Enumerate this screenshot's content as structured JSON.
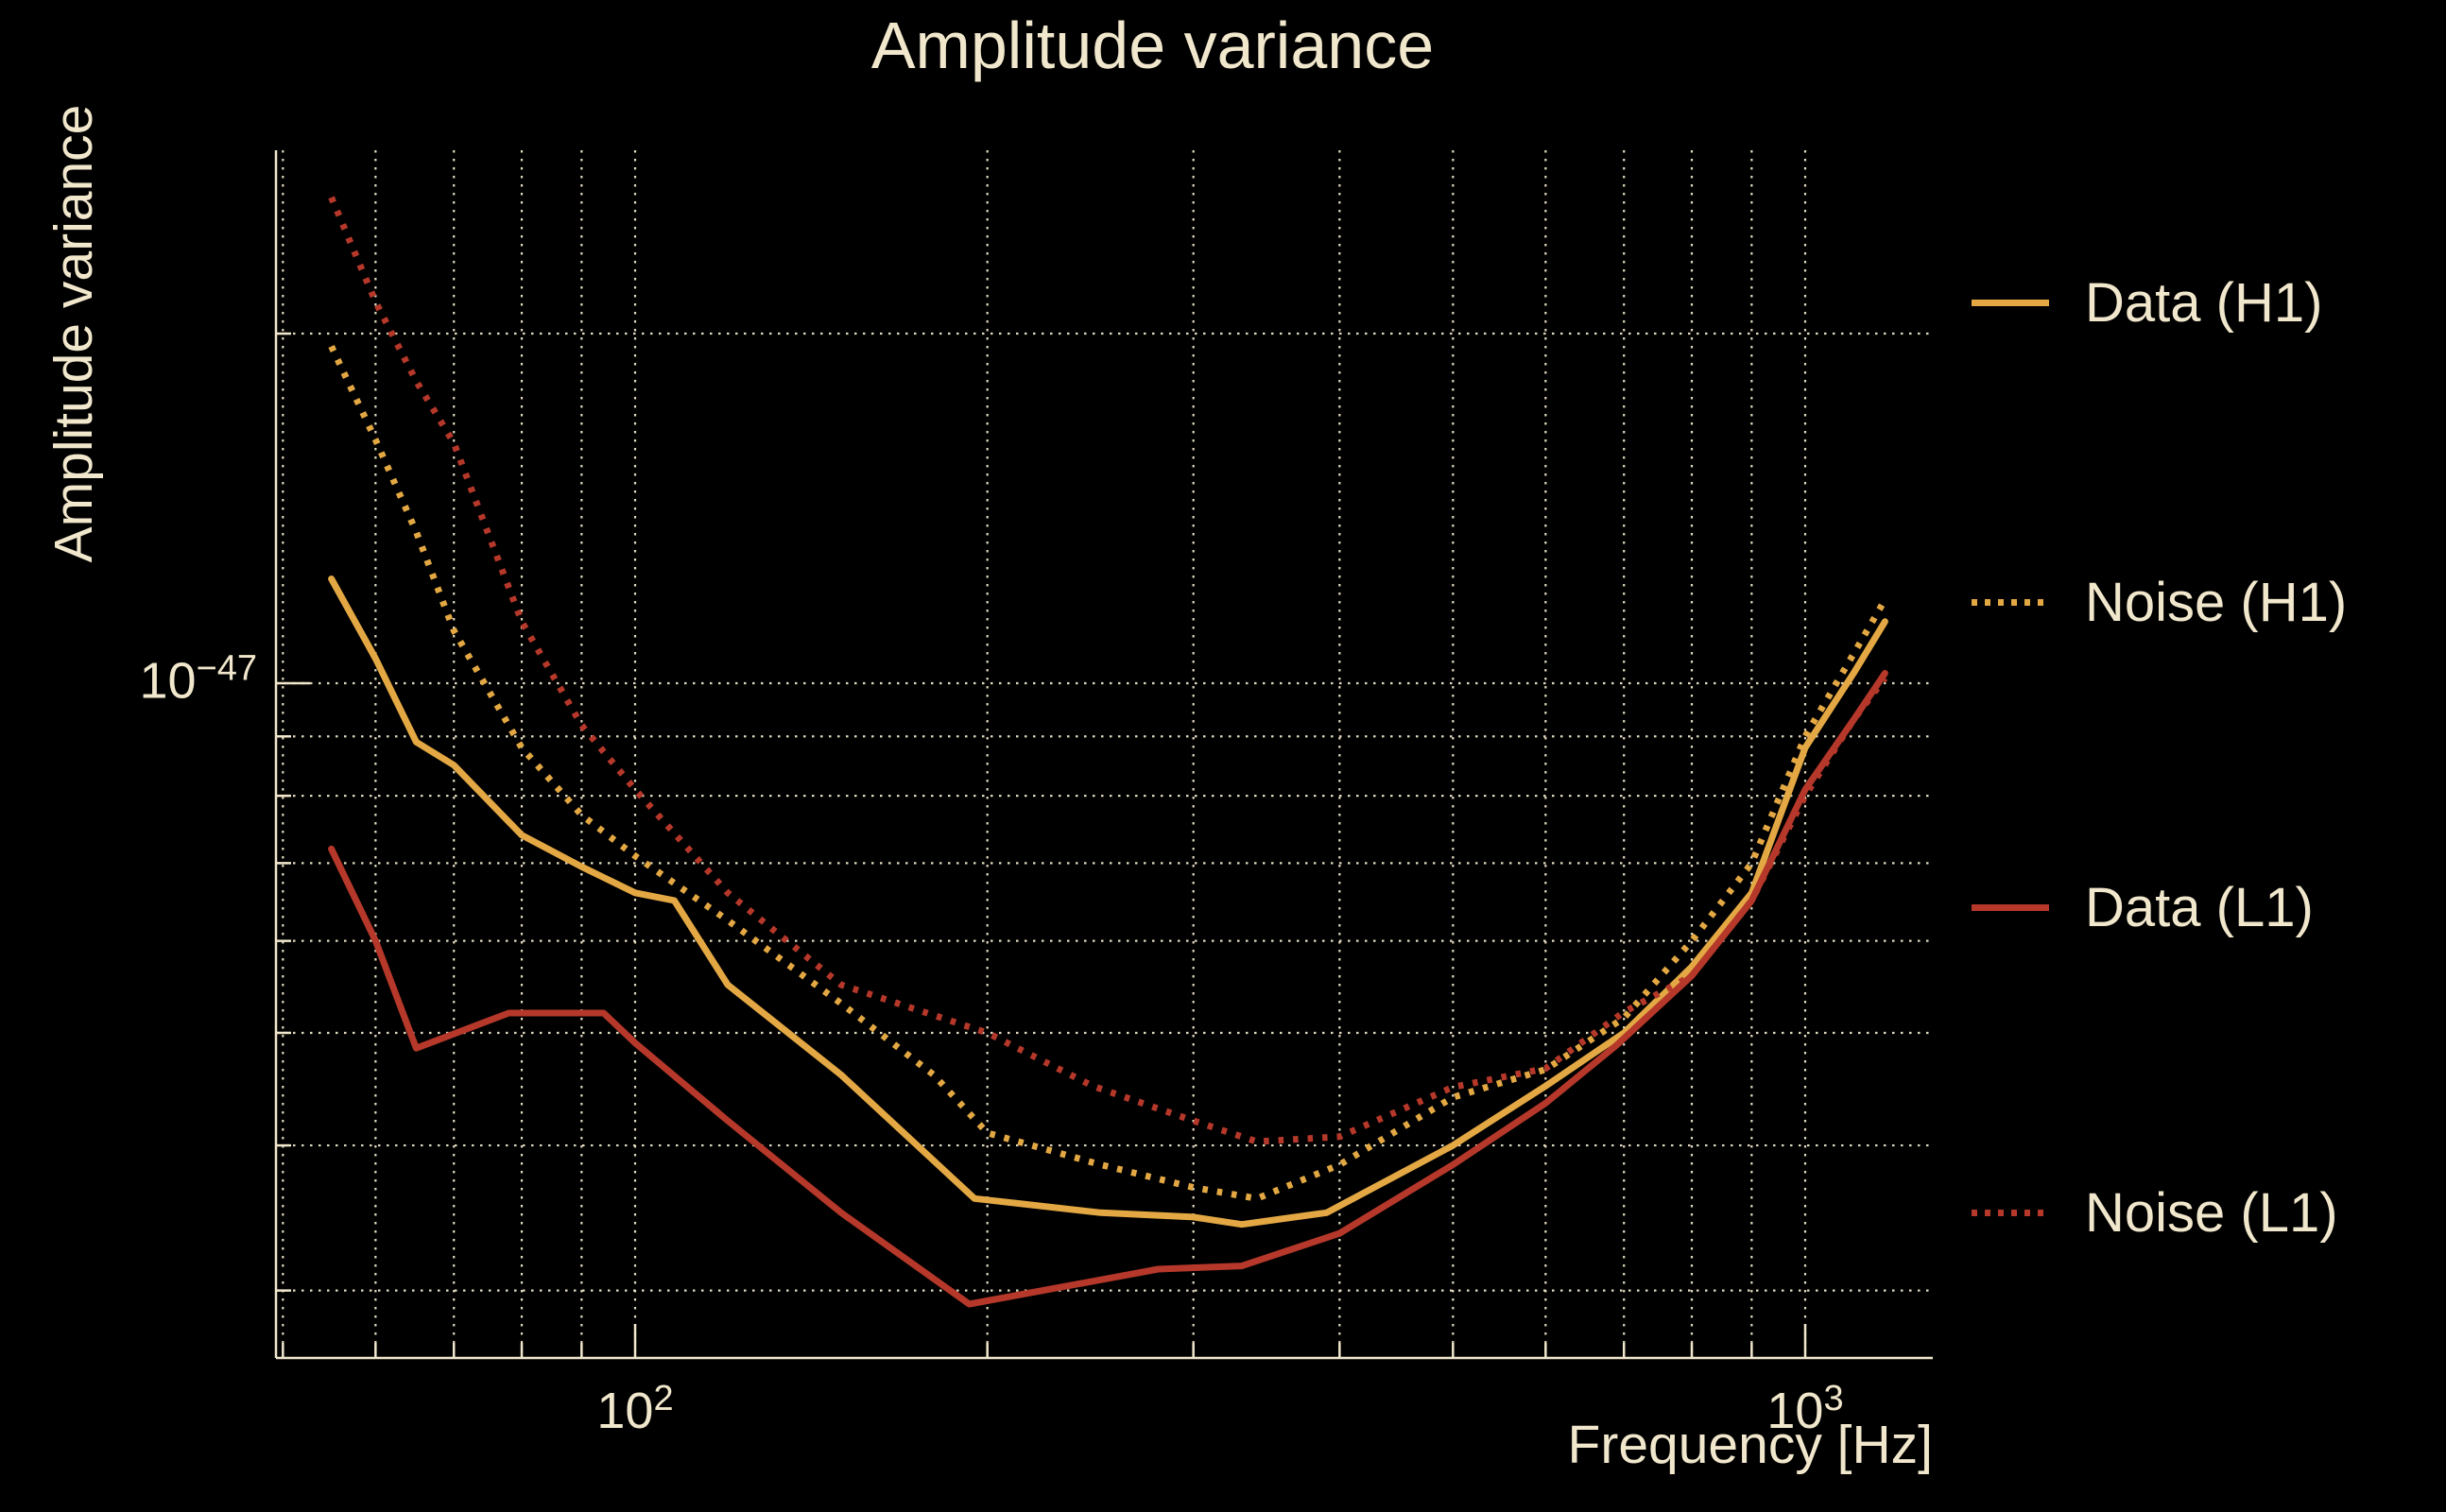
{
  "page": {
    "background": "#000000",
    "text_color": "#F1E7CC"
  },
  "chart": {
    "title": "Amplitude variance",
    "xlabel": "Frequency [Hz]",
    "ylabel": "Amplitude variance"
  },
  "ticks": {
    "y1": {
      "base": "10",
      "exp": "−47"
    },
    "x1": {
      "base": "10",
      "exp": "2"
    },
    "x2": {
      "base": "10",
      "exp": "3"
    }
  },
  "legend": {
    "items": [
      {
        "label": "Data (H1)",
        "style": "solid",
        "color": "#E3A843"
      },
      {
        "label": "Noise (H1)",
        "style": "dotted",
        "color": "#E3A843"
      },
      {
        "label": "Data (L1)",
        "style": "solid",
        "color": "#B5382A"
      },
      {
        "label": "Noise (L1)",
        "style": "dotted",
        "color": "#B5382A"
      }
    ]
  },
  "chart_data": {
    "type": "line",
    "title": "Amplitude variance",
    "xlabel": "Frequency [Hz]",
    "ylabel": "Amplitude variance",
    "x_scale": "log",
    "y_scale": "log",
    "xlim_hz": [
      49.3,
      1290
    ],
    "ylim": [
      2.6e-48,
      2.9e-47
    ],
    "grid": "dotted",
    "legend_position": "right-outside",
    "value_unit": "1e-48",
    "x_gridlines_hz": [
      50,
      60,
      70,
      80,
      90,
      100,
      200,
      300,
      400,
      500,
      600,
      700,
      800,
      900,
      1000
    ],
    "x_major_ticks_hz": [
      100,
      1000
    ],
    "y_gridlines_1e48": [
      20,
      10,
      9,
      8,
      7,
      6,
      5,
      4,
      3
    ],
    "y_major_ticks_1e48": [
      10
    ],
    "grid_color": "#EFE6CB",
    "series": [
      {
        "name": "Data (H1)",
        "color": "#E3A843",
        "line": "solid",
        "points": [
          [
            55,
            12.3
          ],
          [
            60,
            10.5
          ],
          [
            65,
            8.9
          ],
          [
            70,
            8.5
          ],
          [
            80,
            7.4
          ],
          [
            90,
            6.95
          ],
          [
            100,
            6.6
          ],
          [
            108,
            6.5
          ],
          [
            120,
            5.5
          ],
          [
            150,
            4.6
          ],
          [
            195,
            3.6
          ],
          [
            250,
            3.5
          ],
          [
            300,
            3.47
          ],
          [
            330,
            3.42
          ],
          [
            390,
            3.5
          ],
          [
            500,
            4.0
          ],
          [
            600,
            4.5
          ],
          [
            700,
            5.0
          ],
          [
            800,
            5.7
          ],
          [
            900,
            6.6
          ],
          [
            1000,
            8.8
          ],
          [
            1100,
            10.2
          ],
          [
            1170,
            11.3
          ]
        ]
      },
      {
        "name": "Noise (H1)",
        "color": "#E3A843",
        "line": "dotted",
        "points": [
          [
            55,
            19.5
          ],
          [
            60,
            16.2
          ],
          [
            65,
            13.5
          ],
          [
            70,
            11.1
          ],
          [
            80,
            8.8
          ],
          [
            90,
            7.7
          ],
          [
            100,
            7.1
          ],
          [
            120,
            6.25
          ],
          [
            150,
            5.3
          ],
          [
            180,
            4.6
          ],
          [
            200,
            4.1
          ],
          [
            250,
            3.85
          ],
          [
            300,
            3.68
          ],
          [
            340,
            3.6
          ],
          [
            400,
            3.85
          ],
          [
            500,
            4.4
          ],
          [
            600,
            4.65
          ],
          [
            700,
            5.15
          ],
          [
            800,
            6.0
          ],
          [
            900,
            7.0
          ],
          [
            1000,
            9.0
          ],
          [
            1100,
            10.6
          ],
          [
            1170,
            11.8
          ]
        ]
      },
      {
        "name": "Data (L1)",
        "color": "#B5382A",
        "line": "solid",
        "points": [
          [
            55,
            7.2
          ],
          [
            60,
            6.0
          ],
          [
            65,
            4.85
          ],
          [
            78,
            5.2
          ],
          [
            94,
            5.2
          ],
          [
            100,
            4.9
          ],
          [
            120,
            4.2
          ],
          [
            150,
            3.5
          ],
          [
            193,
            2.92
          ],
          [
            280,
            3.13
          ],
          [
            330,
            3.15
          ],
          [
            400,
            3.36
          ],
          [
            500,
            3.85
          ],
          [
            600,
            4.35
          ],
          [
            690,
            4.88
          ],
          [
            800,
            5.6
          ],
          [
            900,
            6.5
          ],
          [
            1000,
            8.1
          ],
          [
            1100,
            9.3
          ],
          [
            1170,
            10.2
          ]
        ]
      },
      {
        "name": "Noise (L1)",
        "color": "#B5382A",
        "line": "dotted",
        "points": [
          [
            55,
            26.2
          ],
          [
            60,
            21.3
          ],
          [
            65,
            18.2
          ],
          [
            70,
            16.1
          ],
          [
            80,
            11.3
          ],
          [
            90,
            9.2
          ],
          [
            100,
            8.1
          ],
          [
            120,
            6.6
          ],
          [
            150,
            5.5
          ],
          [
            200,
            5.0
          ],
          [
            246,
            4.5
          ],
          [
            300,
            4.2
          ],
          [
            340,
            4.03
          ],
          [
            400,
            4.07
          ],
          [
            500,
            4.49
          ],
          [
            600,
            4.66
          ],
          [
            700,
            5.21
          ],
          [
            800,
            5.6
          ],
          [
            900,
            6.5
          ],
          [
            1000,
            8.0
          ],
          [
            1100,
            9.3
          ],
          [
            1170,
            10.1
          ]
        ]
      }
    ]
  }
}
